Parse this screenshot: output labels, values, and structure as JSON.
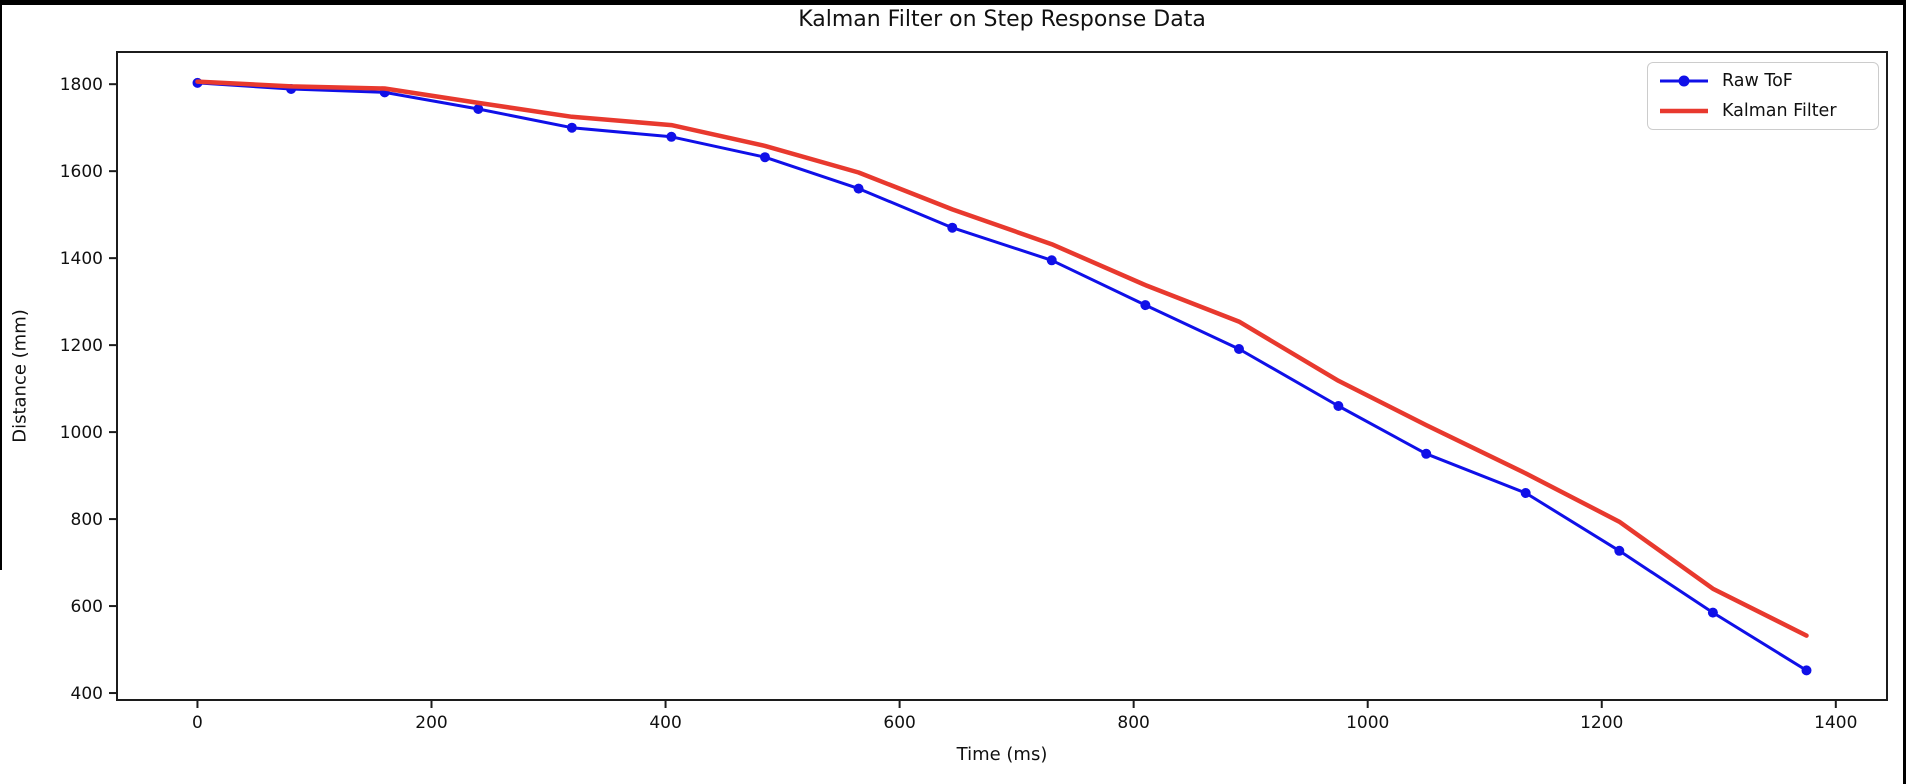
{
  "chart_data": {
    "type": "line",
    "title": "Kalman Filter on Step Response Data",
    "xlabel": "Time (ms)",
    "ylabel": "Distance (mm)",
    "xlim": [
      -68.75,
      1443.75
    ],
    "ylim": [
      384,
      1874
    ],
    "xticks": [
      0,
      200,
      400,
      600,
      800,
      1000,
      1200,
      1400
    ],
    "yticks": [
      400,
      600,
      800,
      1000,
      1200,
      1400,
      1600,
      1800
    ],
    "grid": false,
    "x": [
      0,
      80,
      160,
      240,
      320,
      405,
      485,
      565,
      645,
      730,
      810,
      890,
      975,
      1050,
      1135,
      1215,
      1295,
      1375
    ],
    "series": [
      {
        "name": "Raw ToF",
        "color": "#1010e8",
        "marker": "circle",
        "marker_radius": 5,
        "line_width": 3,
        "values": [
          1803,
          1789,
          1781,
          1743,
          1700,
          1679,
          1632,
          1560,
          1470,
          1395,
          1292,
          1191,
          1060,
          950,
          860,
          727,
          585,
          452
        ]
      },
      {
        "name": "Kalman Filter",
        "color": "#e8392e",
        "marker": "none",
        "marker_radius": 0,
        "line_width": 4.5,
        "values": [
          1806,
          1795,
          1790,
          1757,
          1725,
          1706,
          1658,
          1597,
          1512,
          1432,
          1338,
          1254,
          1118,
          1016,
          905,
          794,
          640,
          532
        ]
      }
    ],
    "legend": {
      "position": "upper right",
      "entries": [
        "Raw ToF",
        "Kalman Filter"
      ]
    },
    "frame_color": "#1c1c1c",
    "tick_label_color": "#111111",
    "tick_font_size": 17
  }
}
